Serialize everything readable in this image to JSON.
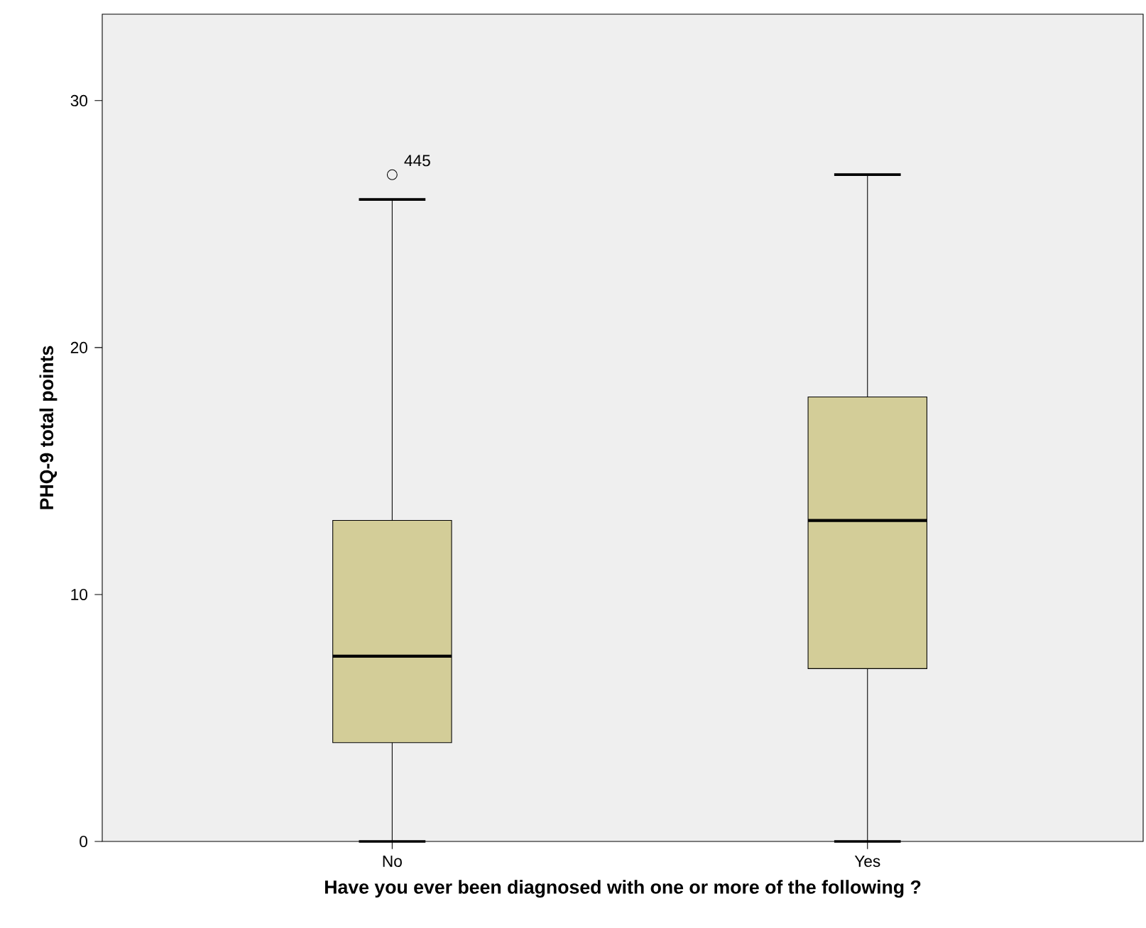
{
  "chart_data": {
    "type": "box",
    "categories": [
      "No",
      "Yes"
    ],
    "boxes": [
      {
        "low": 0,
        "q1": 4,
        "median": 7.5,
        "q3": 13,
        "high": 26,
        "outliers": [
          27
        ]
      },
      {
        "low": 0,
        "q1": 7,
        "median": 13,
        "q3": 18,
        "high": 27
      }
    ],
    "color": "#d3cd98",
    "ylim": [
      0,
      33.5
    ],
    "yticks": [
      0,
      10,
      20,
      30
    ],
    "xlabel": "Have you ever been diagnosed with one or more of the following ?",
    "ylabel": "PHQ-9 total points",
    "annotations": [
      "445"
    ]
  }
}
